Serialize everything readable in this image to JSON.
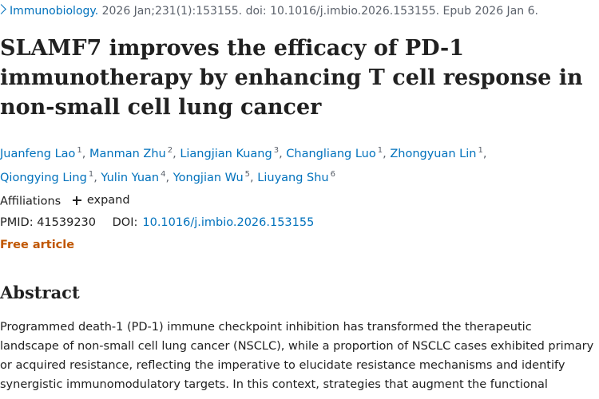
{
  "citation": {
    "journal": "Immunobiology.",
    "details": "2026 Jan;231(1):153155. doi: 10.1016/j.imbio.2026.153155. Epub 2026 Jan 6."
  },
  "article": {
    "title": "SLAMF7 improves the efficacy of PD-1 immunotherapy by enhancing T cell response in non-small cell lung cancer"
  },
  "authors": [
    {
      "name": "Juanfeng Lao",
      "aff": "1"
    },
    {
      "name": "Manman Zhu",
      "aff": "2"
    },
    {
      "name": "Liangjian Kuang",
      "aff": "3"
    },
    {
      "name": "Changliang Luo",
      "aff": "1"
    },
    {
      "name": "Zhongyuan Lin",
      "aff": "1"
    },
    {
      "name": "Qiongying Ling",
      "aff": "1"
    },
    {
      "name": "Yulin Yuan",
      "aff": "4"
    },
    {
      "name": "Yongjian Wu",
      "aff": "5"
    },
    {
      "name": "Liuyang Shu",
      "aff": "6"
    }
  ],
  "affiliations": {
    "label": "Affiliations",
    "expand_label": "expand"
  },
  "identifiers": {
    "pmid_label": "PMID:",
    "pmid": "41539230",
    "doi_label": "DOI:",
    "doi": "10.1016/j.imbio.2026.153155"
  },
  "free_article": "Free article",
  "abstract": {
    "heading": "Abstract",
    "lines": [
      "Programmed death-1 (PD-1) immune checkpoint inhibition has transformed the therapeutic",
      "landscape of non-small cell lung cancer (NSCLC), while a proportion of NSCLC cases exhibited primary",
      "or acquired resistance, reflecting the imperative to elucidate resistance mechanisms and identify",
      "synergistic immunomodulatory targets. In this context, strategies that augment the functional"
    ]
  }
}
